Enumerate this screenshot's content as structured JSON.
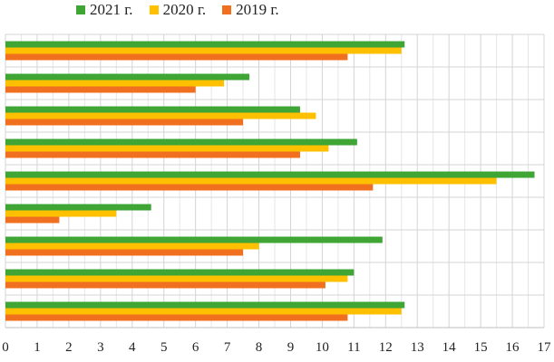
{
  "chart_data": {
    "type": "bar",
    "orientation": "horizontal",
    "title": "",
    "xlabel": "",
    "ylabel": "",
    "xlim": [
      0,
      17
    ],
    "x_ticks": [
      0,
      1,
      2,
      3,
      4,
      5,
      6,
      7,
      8,
      9,
      10,
      11,
      12,
      13,
      14,
      15,
      16,
      17
    ],
    "x_tick_labels": [
      "0",
      "1",
      "2",
      "3",
      "4",
      "5",
      "6",
      "7",
      "8",
      "9",
      "10",
      "11",
      "12",
      "13",
      "14",
      "15",
      "16",
      "17"
    ],
    "grid": "vertical",
    "legend_position": "top-left",
    "categories": [
      "",
      "",
      "",
      "",
      "",
      "",
      "",
      "",
      ""
    ],
    "series": [
      {
        "name": "2021 г.",
        "color": "#3fa535",
        "values": [
          12.6,
          7.7,
          9.3,
          11.1,
          16.7,
          4.6,
          11.9,
          11.0,
          12.6
        ]
      },
      {
        "name": "2020 г.",
        "color": "#ffc000",
        "values": [
          12.5,
          6.9,
          9.8,
          10.2,
          15.5,
          3.5,
          8.0,
          10.8,
          12.5
        ]
      },
      {
        "name": "2019 г.",
        "color": "#f07020",
        "values": [
          10.8,
          6.0,
          7.5,
          9.3,
          11.6,
          1.7,
          7.5,
          10.1,
          10.8
        ]
      }
    ]
  }
}
